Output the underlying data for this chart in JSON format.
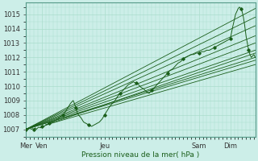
{
  "bg_color": "#cceee8",
  "grid_color": "#aaddcc",
  "line_color": "#1a5e1a",
  "ylabel": "Pression niveau de la mer( hPa )",
  "ylim": [
    1006.5,
    1015.8
  ],
  "yticks": [
    1007,
    1008,
    1009,
    1010,
    1011,
    1012,
    1013,
    1014,
    1015
  ],
  "xtick_labels": [
    "Mer",
    "Ven",
    "Jeu",
    "Sam",
    "Dim"
  ],
  "xtick_pos": [
    0,
    12,
    60,
    132,
    156
  ],
  "total_hours": 175,
  "main_line": [
    [
      0,
      1007.0
    ],
    [
      1,
      1007.05
    ],
    [
      2,
      1007.0
    ],
    [
      3,
      1007.1
    ],
    [
      4,
      1007.0
    ],
    [
      5,
      1007.05
    ],
    [
      6,
      1007.0
    ],
    [
      7,
      1007.1
    ],
    [
      8,
      1007.0
    ],
    [
      9,
      1007.1
    ],
    [
      10,
      1007.15
    ],
    [
      11,
      1007.1
    ],
    [
      12,
      1007.2
    ],
    [
      13,
      1007.25
    ],
    [
      14,
      1007.2
    ],
    [
      15,
      1007.3
    ],
    [
      16,
      1007.3
    ],
    [
      17,
      1007.4
    ],
    [
      18,
      1007.4
    ],
    [
      19,
      1007.5
    ],
    [
      20,
      1007.5
    ],
    [
      22,
      1007.6
    ],
    [
      24,
      1007.7
    ],
    [
      26,
      1007.85
    ],
    [
      28,
      1008.0
    ],
    [
      30,
      1008.2
    ],
    [
      32,
      1008.5
    ],
    [
      34,
      1008.8
    ],
    [
      36,
      1009.0
    ],
    [
      37,
      1008.8
    ],
    [
      38,
      1008.5
    ],
    [
      39,
      1008.2
    ],
    [
      40,
      1008.0
    ],
    [
      42,
      1007.8
    ],
    [
      44,
      1007.5
    ],
    [
      46,
      1007.4
    ],
    [
      48,
      1007.3
    ],
    [
      50,
      1007.2
    ],
    [
      52,
      1007.3
    ],
    [
      54,
      1007.4
    ],
    [
      56,
      1007.5
    ],
    [
      58,
      1007.7
    ],
    [
      60,
      1008.0
    ],
    [
      62,
      1008.3
    ],
    [
      64,
      1008.6
    ],
    [
      66,
      1008.8
    ],
    [
      68,
      1009.0
    ],
    [
      70,
      1009.3
    ],
    [
      72,
      1009.5
    ],
    [
      74,
      1009.7
    ],
    [
      76,
      1009.9
    ],
    [
      78,
      1010.1
    ],
    [
      80,
      1010.2
    ],
    [
      82,
      1010.3
    ],
    [
      84,
      1010.2
    ],
    [
      86,
      1010.1
    ],
    [
      88,
      1009.9
    ],
    [
      90,
      1009.8
    ],
    [
      92,
      1009.6
    ],
    [
      94,
      1009.5
    ],
    [
      96,
      1009.7
    ],
    [
      98,
      1009.9
    ],
    [
      100,
      1010.1
    ],
    [
      102,
      1010.3
    ],
    [
      104,
      1010.5
    ],
    [
      106,
      1010.7
    ],
    [
      108,
      1010.9
    ],
    [
      110,
      1011.1
    ],
    [
      112,
      1011.2
    ],
    [
      114,
      1011.4
    ],
    [
      116,
      1011.6
    ],
    [
      118,
      1011.7
    ],
    [
      120,
      1011.9
    ],
    [
      122,
      1012.0
    ],
    [
      124,
      1012.1
    ],
    [
      126,
      1012.2
    ],
    [
      128,
      1012.2
    ],
    [
      130,
      1012.3
    ],
    [
      132,
      1012.3
    ],
    [
      134,
      1012.4
    ],
    [
      136,
      1012.4
    ],
    [
      138,
      1012.5
    ],
    [
      140,
      1012.5
    ],
    [
      142,
      1012.6
    ],
    [
      144,
      1012.7
    ],
    [
      146,
      1012.8
    ],
    [
      148,
      1012.9
    ],
    [
      150,
      1013.0
    ],
    [
      152,
      1013.1
    ],
    [
      154,
      1013.2
    ],
    [
      156,
      1013.3
    ],
    [
      158,
      1014.2
    ],
    [
      160,
      1015.0
    ],
    [
      161,
      1015.2
    ],
    [
      162,
      1015.4
    ],
    [
      163,
      1015.5
    ],
    [
      164,
      1015.4
    ],
    [
      165,
      1015.2
    ],
    [
      166,
      1014.8
    ],
    [
      167,
      1014.2
    ],
    [
      168,
      1013.5
    ],
    [
      169,
      1013.0
    ],
    [
      170,
      1012.5
    ],
    [
      171,
      1012.2
    ],
    [
      172,
      1012.0
    ],
    [
      173,
      1012.1
    ],
    [
      174,
      1012.2
    ],
    [
      175,
      1012.0
    ]
  ],
  "ensemble_lines": [
    [
      [
        0,
        1007.0
      ],
      [
        175,
        1015.4
      ]
    ],
    [
      [
        0,
        1007.0
      ],
      [
        175,
        1014.8
      ]
    ],
    [
      [
        0,
        1007.0
      ],
      [
        175,
        1014.2
      ]
    ],
    [
      [
        0,
        1007.0
      ],
      [
        175,
        1013.5
      ]
    ],
    [
      [
        0,
        1007.0
      ],
      [
        175,
        1013.0
      ]
    ],
    [
      [
        0,
        1007.0
      ],
      [
        175,
        1012.5
      ]
    ],
    [
      [
        0,
        1007.0
      ],
      [
        175,
        1012.0
      ]
    ],
    [
      [
        0,
        1007.0
      ],
      [
        175,
        1011.8
      ]
    ],
    [
      [
        15,
        1007.3
      ],
      [
        175,
        1012.3
      ]
    ],
    [
      [
        15,
        1007.3
      ],
      [
        175,
        1011.5
      ]
    ]
  ],
  "marker_size": 1.8,
  "linewidth": 0.7,
  "ensemble_linewidth": 0.6
}
